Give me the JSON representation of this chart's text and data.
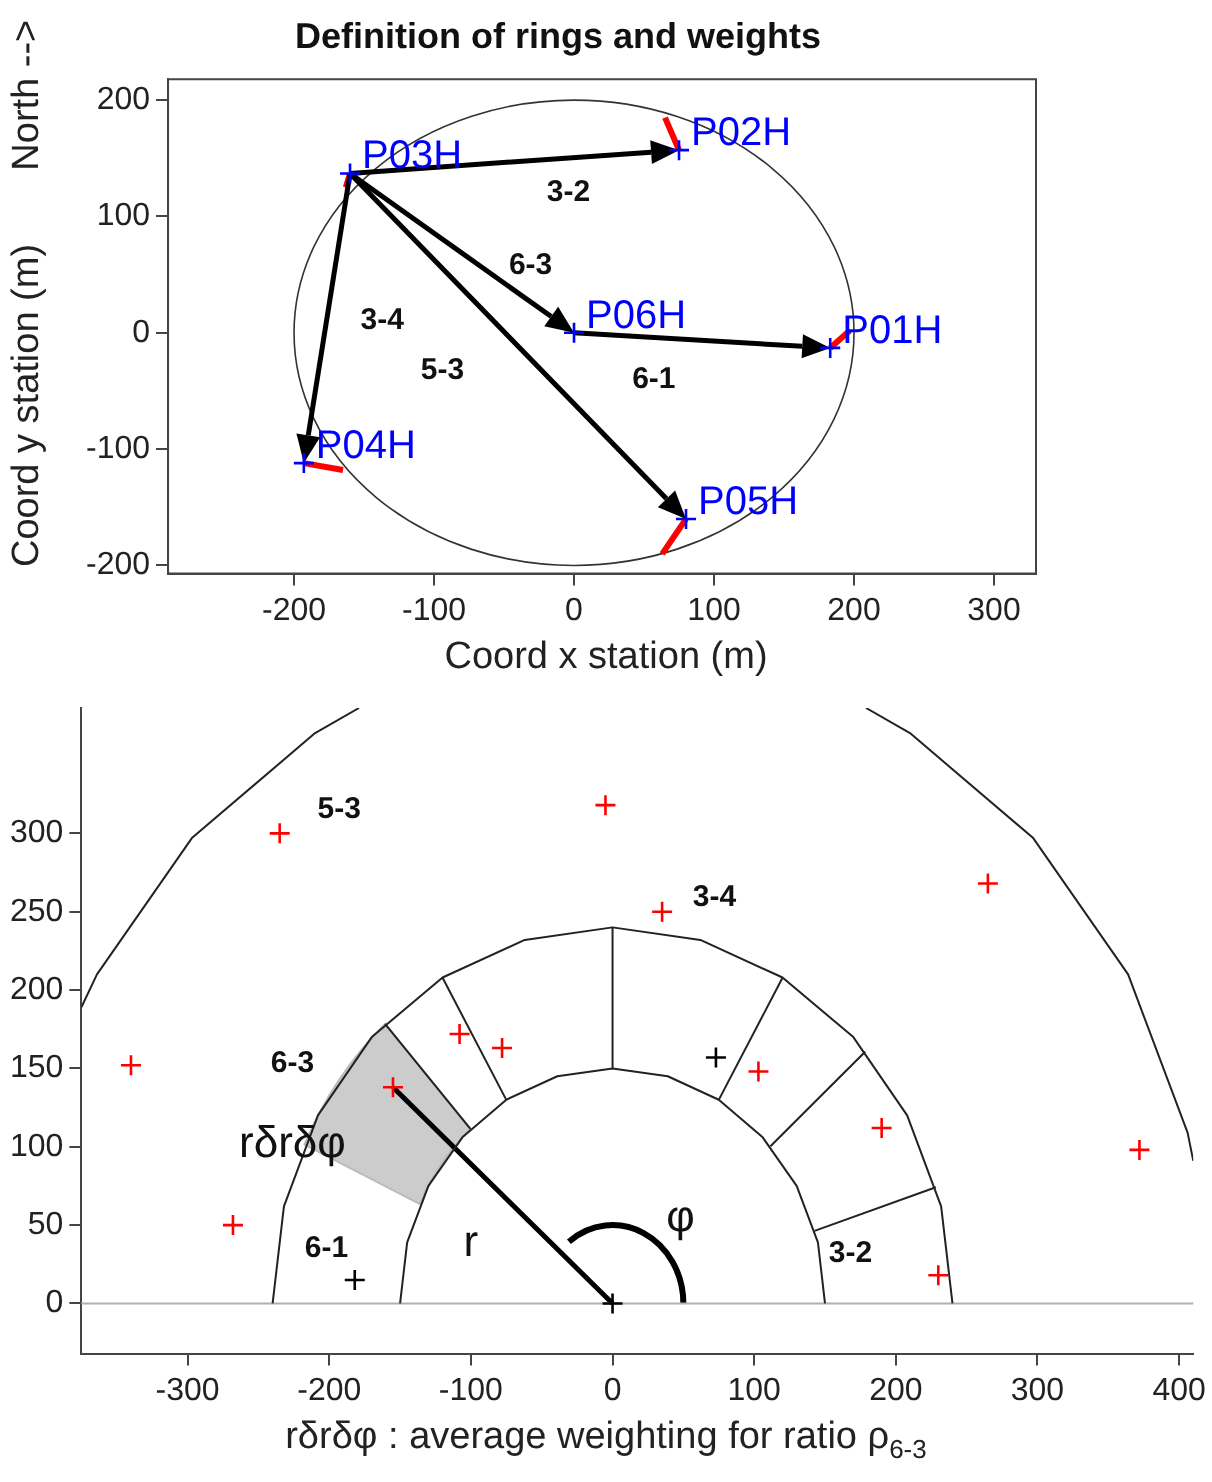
{
  "chart_data": [
    {
      "type": "scatter",
      "title": "Definition of rings and weights",
      "xlabel": "Coord x station (m)",
      "ylabel": "Coord y station (m)",
      "annotations": [
        "North -->",
        "3-2",
        {
          "text": "6-3",
          "x": 0,
          "y": 0
        },
        "3-4",
        "5-3",
        "6-1"
      ],
      "xlim": [
        -290,
        330
      ],
      "ylim": [
        -207,
        218
      ],
      "xticks": [
        -200,
        -100,
        0,
        100,
        200,
        300
      ],
      "yticks": [
        -200,
        -100,
        0,
        100,
        200
      ],
      "grid": false,
      "legend": false,
      "series": [
        {
          "color": "#0000ff",
          "marker": "cross",
          "x": [
            183,
            75,
            -160,
            -193,
            80,
            0
          ],
          "values": [
            -13,
            157,
            137,
            -112,
            -160,
            0
          ],
          "value_labels": [
            "P01H",
            "P02H",
            "P03H",
            "P04H",
            "P05H",
            "P06H"
          ]
        }
      ]
    },
    {
      "type": "scatter",
      "xlabel": "rδrδφ : average weighting for ratio ρ$_{6-3}$",
      "annotations": [
        "5-3",
        "3-4",
        "6-3",
        {
          "text": "rδrδφ",
          "x": -155,
          "y": 138
        },
        "6-1",
        "r",
        "φ",
        {
          "text": "3-2",
          "x": 230,
          "y": 18
        }
      ],
      "xlim": [
        -375,
        410
      ],
      "ylim": [
        -32,
        380
      ],
      "xticks": [
        -300,
        -200,
        -100,
        0,
        100,
        200,
        300,
        400
      ],
      "yticks": [
        0,
        50,
        100,
        150,
        200,
        250,
        300
      ],
      "grid": false,
      "legend": false,
      "ref_lines": [
        {
          "axis": "y",
          "value": 0,
          "color": "#b0b0b0"
        }
      ],
      "series": [
        {
          "type": "line",
          "color": "#222222",
          "marker": "none",
          "x": [
            150,
            145,
            130,
            106,
            75,
            39,
            0,
            -39,
            -75,
            -106,
            -130,
            -145,
            -150
          ],
          "values": [
            0,
            39,
            75,
            106,
            130,
            145,
            150,
            145,
            130,
            106,
            75,
            39,
            0
          ]
        },
        {
          "type": "line",
          "color": "#222222",
          "marker": "none",
          "x": [
            240,
            232,
            208,
            170,
            120,
            62,
            0,
            -62,
            -120,
            -170,
            -208,
            -232,
            -240
          ],
          "values": [
            0,
            62,
            120,
            170,
            208,
            232,
            240,
            232,
            208,
            170,
            120,
            62,
            0
          ]
        },
        {
          "type": "line",
          "color": "#222222",
          "marker": "none",
          "x": [
            410,
            406,
            364,
            297,
            210,
            179
          ],
          "values": [
            91,
            109,
            210,
            297,
            364,
            380
          ]
        },
        {
          "type": "line",
          "color": "#222222",
          "marker": "none",
          "x": [
            -179,
            -210,
            -297,
            -364,
            -375
          ],
          "values": [
            380,
            364,
            297,
            210,
            189
          ]
        },
        {
          "color": "#000000",
          "marker": "cross",
          "x": [
            73,
            -182,
            0
          ],
          "values": [
            157,
            15,
            0
          ]
        },
        {
          "color": "#ff0000",
          "marker": "cross",
          "x": [
            -235,
            -5,
            35,
            265,
            -340,
            -108,
            -78,
            103,
            190,
            -155,
            372,
            -268,
            230
          ],
          "values": [
            300,
            318,
            250,
            268,
            152,
            172,
            163,
            148,
            112,
            138,
            98,
            50,
            18
          ]
        }
      ]
    }
  ]
}
